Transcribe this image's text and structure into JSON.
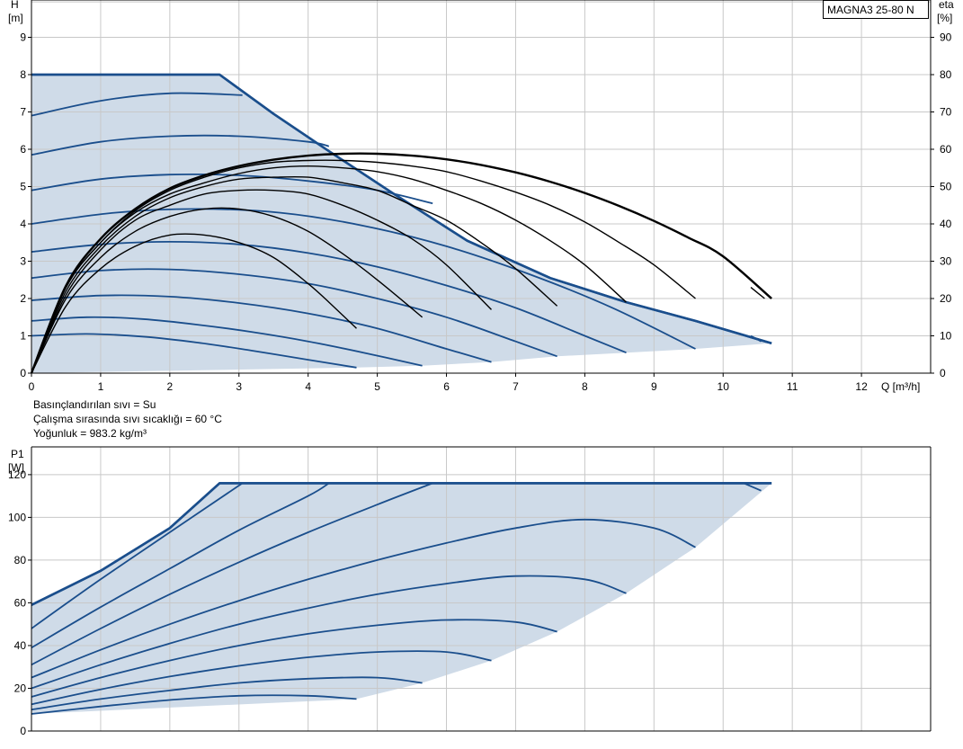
{
  "model_label": "MAGNA3 25-80 N",
  "fluid_info": [
    "Basınçlandırılan sıvı = Su",
    "Çalışma sırasında sıvı sıcaklığı = 60 °C",
    "Yoğunluk = 983.2 kg/m³"
  ],
  "colors": {
    "curve": "#1a4e8c",
    "efficiency": "#000000",
    "fill": "#cfdbe8",
    "grid": "#c8c8c8",
    "axis": "#000000"
  },
  "chart_data": [
    {
      "id": "head",
      "type": "line",
      "ylabel_name": "H",
      "ylabel_unit": "[m]",
      "y2label_name": "eta",
      "y2label_unit": "[%]",
      "xlabel": "Q [m³/h]",
      "xlim": [
        0,
        13
      ],
      "ylim": [
        0,
        10
      ],
      "y2lim": [
        0,
        100
      ],
      "x_ticks": [
        0,
        1,
        2,
        3,
        4,
        5,
        6,
        7,
        8,
        9,
        10,
        11,
        12
      ],
      "y_ticks": [
        0,
        1,
        2,
        3,
        4,
        5,
        6,
        7,
        8,
        9
      ],
      "y2_ticks": [
        0,
        10,
        20,
        30,
        40,
        50,
        60,
        70,
        80,
        90
      ],
      "grid": true,
      "envelope": {
        "max_curve": [
          [
            0,
            8.0
          ],
          [
            2.72,
            8.0
          ],
          [
            3.5,
            6.95
          ],
          [
            4.3,
            5.95
          ],
          [
            5.2,
            4.85
          ],
          [
            6.3,
            3.55
          ],
          [
            7.5,
            2.55
          ],
          [
            8.6,
            1.9
          ],
          [
            9.6,
            1.4
          ],
          [
            10.7,
            0.8
          ]
        ],
        "min_curve": [
          [
            4.7,
            0.15
          ],
          [
            5.65,
            0.2
          ],
          [
            6.65,
            0.3
          ],
          [
            7.6,
            0.45
          ],
          [
            8.6,
            0.55
          ],
          [
            9.6,
            0.65
          ],
          [
            10.7,
            0.8
          ]
        ]
      },
      "series": [
        {
          "x": [
            0,
            0.8,
            1.6,
            2.4,
            3.2,
            4.0,
            4.7
          ],
          "values": [
            1.0,
            1.05,
            0.98,
            0.82,
            0.6,
            0.36,
            0.15
          ]
        },
        {
          "x": [
            0,
            0.8,
            1.6,
            2.4,
            3.2,
            4.0,
            4.8,
            5.65
          ],
          "values": [
            1.4,
            1.5,
            1.45,
            1.3,
            1.1,
            0.85,
            0.55,
            0.2
          ]
        },
        {
          "x": [
            0,
            1.0,
            2.0,
            3.0,
            4.0,
            5.0,
            6.0,
            6.65
          ],
          "values": [
            1.95,
            2.08,
            2.05,
            1.88,
            1.6,
            1.2,
            0.65,
            0.3
          ]
        },
        {
          "x": [
            0,
            1.0,
            2.0,
            3.0,
            4.0,
            5.0,
            6.0,
            7.0,
            7.6
          ],
          "values": [
            2.55,
            2.75,
            2.78,
            2.65,
            2.4,
            2.0,
            1.5,
            0.85,
            0.45
          ]
        },
        {
          "x": [
            0,
            1.0,
            2.0,
            3.0,
            4.0,
            5.0,
            6.0,
            7.0,
            8.0,
            8.6
          ],
          "values": [
            3.25,
            3.45,
            3.52,
            3.45,
            3.22,
            2.85,
            2.35,
            1.75,
            1.0,
            0.55
          ]
        },
        {
          "x": [
            0,
            1.2,
            2.4,
            3.6,
            4.8,
            6.0,
            7.2,
            8.4,
            9.6
          ],
          "values": [
            4.0,
            4.3,
            4.4,
            4.3,
            3.95,
            3.4,
            2.65,
            1.75,
            0.65
          ]
        },
        {
          "x": [
            0,
            1.0,
            2.0,
            3.0,
            4.0,
            5.0,
            5.8
          ],
          "values": [
            4.9,
            5.2,
            5.32,
            5.3,
            5.15,
            4.9,
            4.55
          ]
        },
        {
          "x": [
            0,
            1.0,
            2.0,
            3.0,
            4.0,
            4.3
          ],
          "values": [
            5.85,
            6.2,
            6.35,
            6.35,
            6.2,
            6.08
          ]
        },
        {
          "x": [
            0,
            1.0,
            2.0,
            3.05
          ],
          "values": [
            6.9,
            7.3,
            7.5,
            7.45
          ]
        },
        {
          "x": [
            0,
            2.72,
            3.5,
            4.3,
            5.2,
            6.3,
            7.5,
            8.6,
            9.6,
            10.7
          ],
          "values": [
            8.0,
            8.0,
            6.95,
            5.95,
            4.85,
            3.55,
            2.55,
            1.9,
            1.4,
            0.8
          ]
        },
        {
          "x": [
            10.4,
            10.5,
            10.55
          ],
          "values": [
            1.0,
            0.9,
            0.85
          ]
        }
      ],
      "efficiency_series": [
        {
          "x": [
            0,
            0.5,
            1.0,
            1.5,
            2.0,
            2.5,
            3.0,
            3.5,
            4.0,
            4.3,
            4.7
          ],
          "values": [
            0,
            18,
            28,
            34,
            37,
            37,
            35,
            31,
            24,
            19,
            12
          ]
        },
        {
          "x": [
            0,
            0.5,
            1.0,
            1.5,
            2.0,
            2.5,
            3.0,
            3.5,
            4.0,
            4.5,
            5.0,
            5.65
          ],
          "values": [
            0,
            20,
            31,
            38,
            42,
            44,
            44,
            42,
            38,
            32,
            25,
            15
          ]
        },
        {
          "x": [
            0,
            0.5,
            1.0,
            1.5,
            2.0,
            2.5,
            3.0,
            3.5,
            4.0,
            4.5,
            5.0,
            5.5,
            6.0,
            6.65
          ],
          "values": [
            0,
            21,
            33,
            41,
            45,
            48,
            49,
            49,
            48,
            45,
            41,
            36,
            29,
            17
          ]
        },
        {
          "x": [
            0,
            0.5,
            1.0,
            1.5,
            2.0,
            2.5,
            3.0,
            3.5,
            4.0,
            4.5,
            5.0,
            5.5,
            6.0,
            6.5,
            7.0,
            7.6
          ],
          "values": [
            0,
            22,
            34,
            42,
            47,
            50,
            52,
            52.5,
            52.5,
            51,
            49,
            45,
            41,
            35,
            28,
            18
          ]
        },
        {
          "x": [
            0,
            0.5,
            1.0,
            1.5,
            2.0,
            2.5,
            3.0,
            3.5,
            4.0,
            4.5,
            5.0,
            5.5,
            6.0,
            6.5,
            7.0,
            7.5,
            8.0,
            8.6
          ],
          "values": [
            0,
            23,
            35,
            43,
            48,
            51,
            53.5,
            55,
            55.5,
            55,
            54,
            52,
            49,
            45.5,
            41,
            35.5,
            29,
            19
          ]
        },
        {
          "x": [
            0,
            0.5,
            1.0,
            1.5,
            2.0,
            2.5,
            3.0,
            3.5,
            4.0,
            4.5,
            5.0,
            5.5,
            6.0,
            6.5,
            7.0,
            7.5,
            8.0,
            8.5,
            9.0,
            9.6
          ],
          "values": [
            0,
            23,
            35,
            43.5,
            49,
            52.5,
            55,
            56.5,
            57,
            57,
            56.5,
            55.5,
            54,
            51.5,
            48.5,
            45,
            40.5,
            35,
            29,
            20
          ]
        },
        {
          "x": [
            0,
            0.5,
            1.0,
            1.5,
            2.0,
            2.5,
            3.0,
            3.5,
            4.0,
            4.5,
            5.0,
            5.5,
            6.0,
            6.5,
            7.0,
            7.5,
            8.0,
            8.5,
            9.0,
            9.5,
            10.0,
            10.7
          ],
          "values": [
            0,
            23.5,
            36,
            44,
            49.5,
            53,
            55.5,
            57.2,
            58.3,
            58.8,
            58.8,
            58.3,
            57.3,
            55.8,
            53.8,
            51.3,
            48.3,
            44.8,
            40.8,
            36.3,
            31.3,
            20
          ]
        },
        {
          "x": [
            10.4,
            10.5,
            10.6
          ],
          "values": [
            23,
            21.5,
            20
          ]
        }
      ]
    },
    {
      "id": "power",
      "type": "line",
      "ylabel_name": "P1",
      "ylabel_unit": "[W]",
      "xlim": [
        0,
        13
      ],
      "ylim": [
        0,
        133
      ],
      "y_ticks": [
        0,
        20,
        40,
        60,
        80,
        100,
        120
      ],
      "grid": true,
      "envelope": {
        "max_curve": [
          [
            0,
            59
          ],
          [
            1.0,
            75
          ],
          [
            2.0,
            95
          ],
          [
            2.72,
            116
          ],
          [
            10.7,
            116
          ]
        ],
        "min_curve": [
          [
            4.7,
            15
          ],
          [
            5.65,
            22.5
          ],
          [
            6.65,
            33
          ],
          [
            7.6,
            46.5
          ],
          [
            8.6,
            64.5
          ],
          [
            9.6,
            86
          ],
          [
            10.7,
            116
          ]
        ]
      },
      "series": [
        {
          "x": [
            0,
            1.0,
            2.0,
            3.0,
            4.0,
            4.7
          ],
          "values": [
            8,
            11.5,
            14.5,
            16.5,
            16.5,
            15
          ]
        },
        {
          "x": [
            0,
            1.0,
            2.0,
            3.0,
            4.0,
            5.0,
            5.65
          ],
          "values": [
            10,
            15,
            19,
            22.5,
            24.5,
            25,
            22.5
          ]
        },
        {
          "x": [
            0,
            1.0,
            2.0,
            3.0,
            4.0,
            5.0,
            6.0,
            6.65
          ],
          "values": [
            12.5,
            19.5,
            25.5,
            30.5,
            34.5,
            37,
            37,
            33
          ]
        },
        {
          "x": [
            0,
            1.0,
            2.0,
            3.0,
            4.0,
            5.0,
            6.0,
            7.0,
            7.6
          ],
          "values": [
            16,
            25,
            33,
            40,
            45.5,
            49.5,
            52,
            51,
            46.5
          ]
        },
        {
          "x": [
            0,
            1.0,
            2.0,
            3.0,
            4.0,
            5.0,
            6.0,
            7.0,
            8.0,
            8.6
          ],
          "values": [
            20,
            31,
            41,
            50,
            57.5,
            64,
            69,
            72.5,
            71,
            64.5
          ]
        },
        {
          "x": [
            0,
            1.0,
            2.0,
            3.0,
            4.0,
            5.0,
            6.0,
            7.0,
            8.0,
            9.0,
            9.6
          ],
          "values": [
            25,
            38,
            50,
            61,
            71,
            80,
            88,
            95,
            99,
            95,
            86
          ]
        },
        {
          "x": [
            0,
            1.0,
            2.0,
            3.0,
            4.0,
            5.0,
            5.8
          ],
          "values": [
            31,
            48,
            64,
            79,
            93,
            106,
            116
          ]
        },
        {
          "x": [
            0,
            1.0,
            2.0,
            3.0,
            4.0,
            4.3
          ],
          "values": [
            39,
            58,
            76,
            94,
            110,
            116
          ]
        },
        {
          "x": [
            0,
            1.0,
            2.0,
            3.05
          ],
          "values": [
            48,
            71,
            93,
            116
          ]
        },
        {
          "x": [
            0,
            1.0,
            2.0,
            2.72,
            10.7
          ],
          "values": [
            59,
            75,
            95,
            116,
            116
          ]
        },
        {
          "x": [
            10.3,
            10.55
          ],
          "values": [
            116,
            112.5
          ]
        }
      ]
    }
  ]
}
